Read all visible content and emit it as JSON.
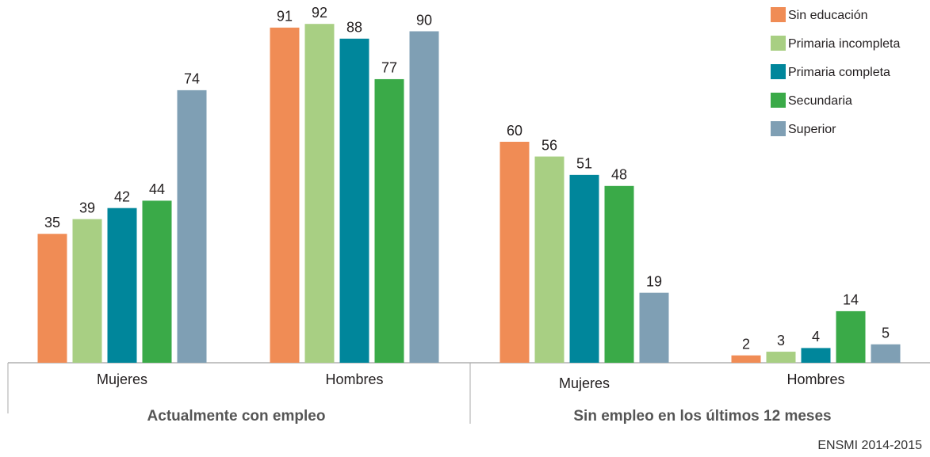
{
  "chart_data": {
    "type": "bar",
    "categories": [
      "Mujeres",
      "Hombres",
      "Mujeres",
      "Hombres"
    ],
    "groups": [
      "Actualmente con empleo",
      "Sin empleo en los últimos 12 meses"
    ],
    "series": [
      {
        "name": "Sin educación",
        "color": "#f08c55",
        "values": [
          35,
          91,
          60,
          2
        ]
      },
      {
        "name": "Primaria incompleta",
        "color": "#a8cf83",
        "values": [
          39,
          92,
          56,
          3
        ]
      },
      {
        "name": "Primaria completa",
        "color": "#00869b",
        "values": [
          42,
          88,
          51,
          4
        ]
      },
      {
        "name": "Secundaria",
        "color": "#3aaa48",
        "values": [
          44,
          77,
          48,
          14
        ]
      },
      {
        "name": "Superior",
        "color": "#7f9fb4",
        "values": [
          74,
          90,
          19,
          5
        ]
      }
    ],
    "legend": "top-right",
    "source": "ENSMI 2014-2015"
  }
}
